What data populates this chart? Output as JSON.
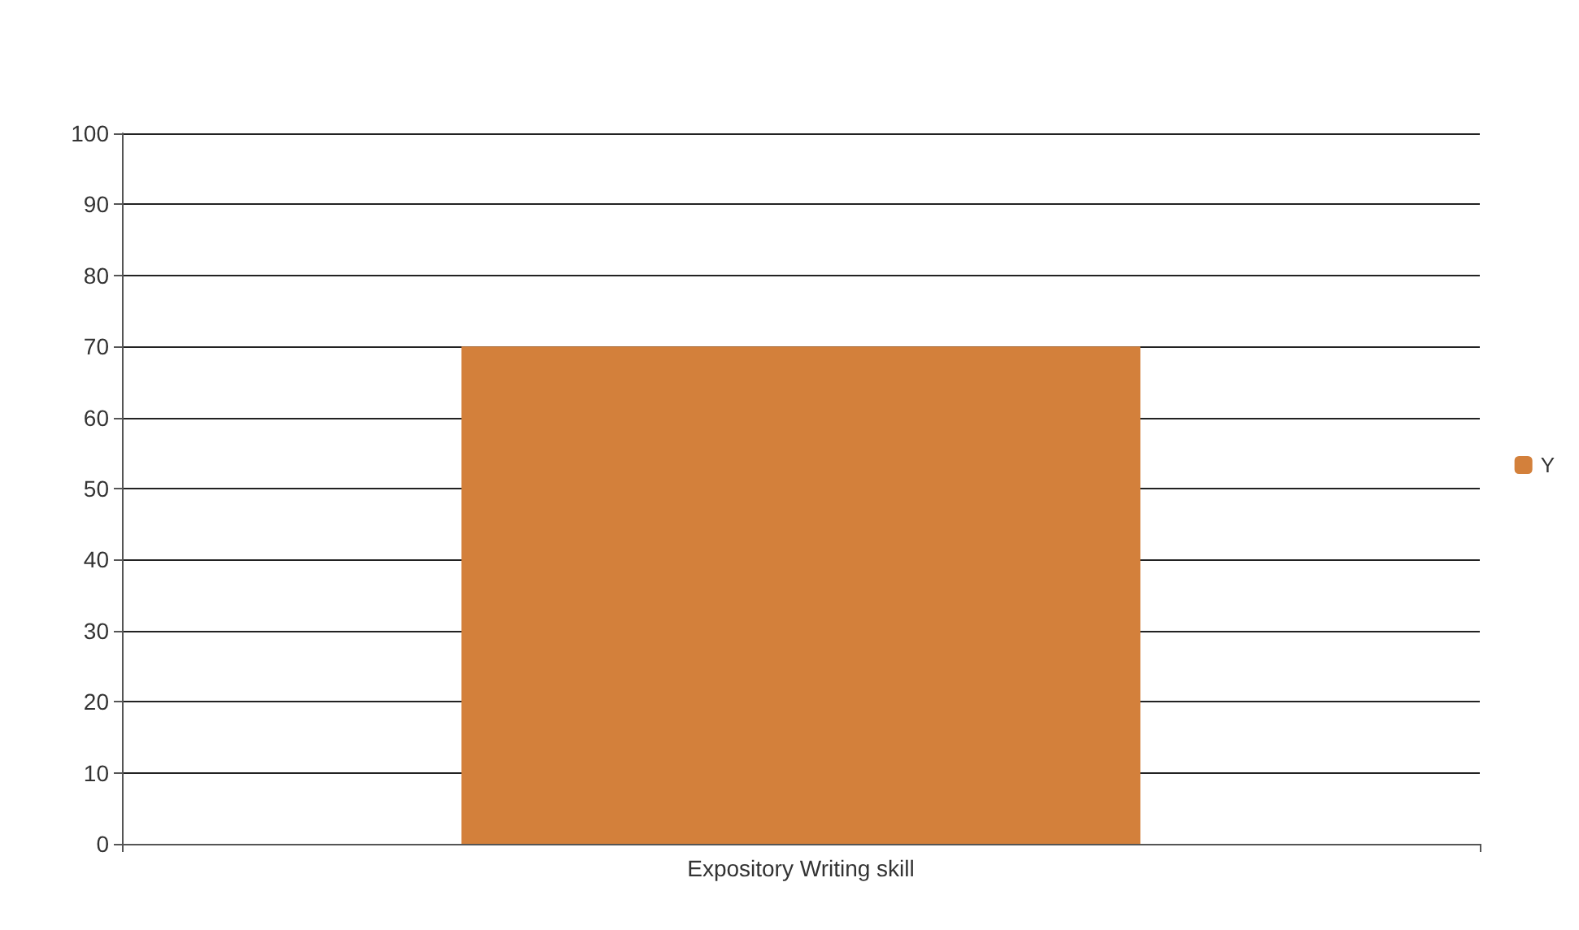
{
  "chart_data": {
    "type": "bar",
    "categories": [
      "Expository Writing skill"
    ],
    "series": [
      {
        "name": "Y",
        "color": "#d3803b",
        "values": [
          70
        ]
      }
    ],
    "ylim": [
      0,
      100
    ],
    "yticks": [
      0,
      10,
      20,
      30,
      40,
      50,
      60,
      70,
      80,
      90,
      100
    ],
    "grid": "y",
    "legend": "right"
  }
}
